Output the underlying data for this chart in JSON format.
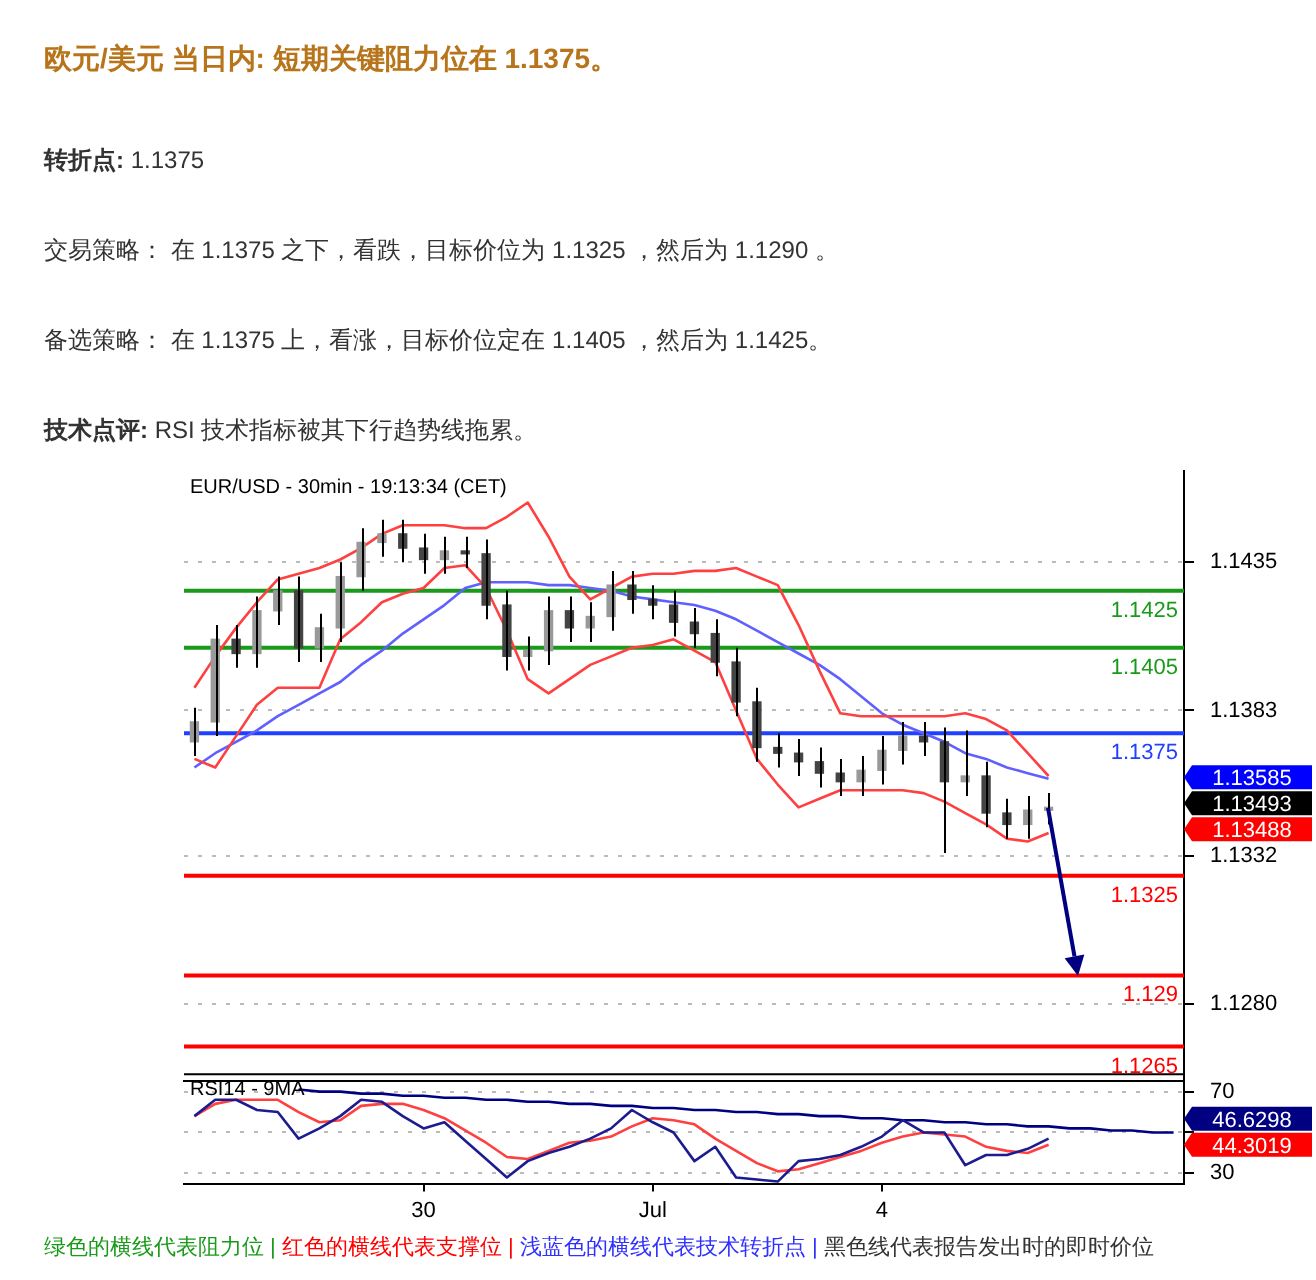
{
  "chart_data": [
    {
      "type": "candlestick",
      "title": "欧元/美元 当日内: 短期关键阻力位在 1.1375。",
      "subtitle": "EUR/USD - 30min - 19:13:34 (CET)",
      "annotations": [
        "转折点: 1.1375",
        "交易策略： 在 1.1375 之下，看跌，目标价位为 1.1325 ，然后为 1.1290 。",
        "备选策略： 在 1.1375 上，看涨，目标价位定在 1.1405 ，然后为 1.1425。",
        "技术点评: RSI 技术指标被其下行趋势线拖累。",
        "1.13585",
        "1.13493",
        "1.13488"
      ],
      "marker": "none",
      "categories": [
        null,
        null,
        null,
        null,
        null,
        null,
        null,
        null,
        null,
        null,
        null,
        null,
        null,
        null,
        null,
        null,
        null,
        null,
        null,
        null,
        null,
        null,
        null,
        null,
        null,
        null,
        null,
        null,
        null,
        null,
        null,
        null,
        null,
        null,
        null,
        null,
        null,
        null,
        null,
        null,
        null,
        null,
        null,
        null,
        null,
        null,
        null,
        null
      ],
      "ohlc": [
        [
          1.1372,
          1.1384,
          1.1367,
          1.1379
        ],
        [
          1.1379,
          1.1413,
          1.1374,
          1.1408
        ],
        [
          1.1408,
          1.1413,
          1.1398,
          1.1403
        ],
        [
          1.1403,
          1.1423,
          1.1398,
          1.1418
        ],
        [
          1.1418,
          1.143,
          1.1413,
          1.1425
        ],
        [
          1.1425,
          1.143,
          1.14,
          1.1405
        ],
        [
          1.1405,
          1.1417,
          1.14,
          1.1412
        ],
        [
          1.1412,
          1.1435,
          1.1407,
          1.143
        ],
        [
          1.143,
          1.1447,
          1.1425,
          1.1442
        ],
        [
          1.1442,
          1.145,
          1.1437,
          1.1445
        ],
        [
          1.1445,
          1.145,
          1.1435,
          1.144
        ],
        [
          1.144,
          1.1445,
          1.1431,
          1.1436
        ],
        [
          1.1436,
          1.1444,
          1.1431,
          1.1439
        ],
        [
          1.1439,
          1.1444,
          1.1433,
          1.1438
        ],
        [
          1.1438,
          1.1443,
          1.1415,
          1.142
        ],
        [
          1.142,
          1.1425,
          1.1397,
          1.1402
        ],
        [
          1.1402,
          1.1409,
          1.1397,
          1.1404
        ],
        [
          1.1404,
          1.1423,
          1.1399,
          1.1418
        ],
        [
          1.1418,
          1.1423,
          1.1407,
          1.1412
        ],
        [
          1.1412,
          1.1421,
          1.1407,
          1.1416
        ],
        [
          1.1416,
          1.1432,
          1.1411,
          1.1427
        ],
        [
          1.1427,
          1.1432,
          1.1417,
          1.1422
        ],
        [
          1.1422,
          1.1427,
          1.1415,
          1.142
        ],
        [
          1.142,
          1.1425,
          1.1409,
          1.1414
        ],
        [
          1.1414,
          1.1419,
          1.1405,
          1.141
        ],
        [
          1.141,
          1.1415,
          1.1395,
          1.14
        ],
        [
          1.14,
          1.1405,
          1.1381,
          1.1386
        ],
        [
          1.1386,
          1.1391,
          1.1365,
          1.137
        ],
        [
          1.137,
          1.1375,
          1.1363,
          1.1368
        ],
        [
          1.1368,
          1.1373,
          1.136,
          1.1365
        ],
        [
          1.1365,
          1.137,
          1.1356,
          1.1361
        ],
        [
          1.1361,
          1.1366,
          1.1353,
          1.1358
        ],
        [
          1.1358,
          1.1367,
          1.1353,
          1.1362
        ],
        [
          1.1362,
          1.1374,
          1.1357,
          1.1369
        ],
        [
          1.1369,
          1.1379,
          1.1364,
          1.1374
        ],
        [
          1.1374,
          1.1379,
          1.1367,
          1.1372
        ],
        [
          1.1372,
          1.1377,
          1.1333,
          1.1358
        ],
        [
          1.1358,
          1.1376,
          1.1353,
          1.136
        ],
        [
          1.136,
          1.1365,
          1.1342,
          1.1347
        ],
        [
          1.1347,
          1.1352,
          1.1338,
          1.1343
        ],
        [
          1.1343,
          1.1353,
          1.1338,
          1.1348
        ],
        [
          1.1348,
          1.1354,
          1.1343,
          1.1349
        ],
        null,
        null,
        null,
        null,
        null,
        null
      ],
      "colors": [
        "#999999",
        "#999999",
        "#444444",
        "#999999",
        "#999999",
        "#444444",
        "#999999",
        "#999999",
        "#999999",
        "#999999",
        "#444444",
        "#444444",
        "#999999",
        "#444444",
        "#444444",
        "#444444",
        "#999999",
        "#999999",
        "#444444",
        "#999999",
        "#999999",
        "#444444",
        "#444444",
        "#444444",
        "#444444",
        "#444444",
        "#444444",
        "#444444",
        "#444444",
        "#444444",
        "#444444",
        "#444444",
        "#999999",
        "#999999",
        "#999999",
        "#444444",
        "#444444",
        "#999999",
        "#444444",
        "#444444",
        "#999999",
        "#999999",
        null,
        null,
        null,
        null,
        null,
        null
      ],
      "series": [
        {
          "type": "line",
          "color": "#ff4040",
          "values": [
            1.1391,
            1.1402,
            1.1412,
            1.1421,
            1.1429,
            1.1431,
            1.1433,
            1.1436,
            1.144,
            1.1445,
            1.1448,
            1.1448,
            1.1448,
            1.1447,
            1.1447,
            1.1451,
            1.1456,
            1.1444,
            1.143,
            1.1422,
            1.1426,
            1.143,
            1.1431,
            1.1431,
            1.1432,
            1.1432,
            1.1433,
            1.143,
            1.1427,
            1.1413,
            1.1397,
            1.1382,
            1.1381,
            1.1381,
            1.1381,
            1.1381,
            1.1381,
            1.1382,
            1.138,
            1.1376,
            1.1368,
            1.136,
            null,
            null,
            null,
            null,
            null,
            null
          ]
        },
        {
          "type": "line",
          "color": "#ff4040",
          "values": [
            1.1366,
            1.1363,
            1.1374,
            1.1385,
            1.1391,
            1.1391,
            1.1391,
            1.1408,
            1.1414,
            1.1421,
            1.1424,
            1.1426,
            1.1433,
            1.1434,
            1.1426,
            1.1411,
            1.1394,
            1.1389,
            1.1394,
            1.1399,
            1.1402,
            1.1405,
            1.1406,
            1.1408,
            1.1404,
            1.14,
            1.1383,
            1.1366,
            1.1357,
            1.1349,
            1.1352,
            1.1355,
            1.1355,
            1.1355,
            1.1355,
            1.1354,
            1.1351,
            1.1347,
            1.1343,
            1.1338,
            1.1337,
            1.134,
            null,
            null,
            null,
            null,
            null,
            null
          ]
        },
        {
          "type": "line",
          "color": "#6060ff",
          "values": [
            1.1363,
            1.1368,
            1.1372,
            1.1376,
            1.1381,
            1.1385,
            1.1389,
            1.1393,
            1.1399,
            1.1404,
            1.141,
            1.1415,
            1.142,
            1.1426,
            1.1428,
            1.1428,
            1.1428,
            1.1427,
            1.1427,
            1.1426,
            1.1425,
            1.1423,
            1.1422,
            1.1421,
            1.142,
            1.1418,
            1.1415,
            1.1411,
            1.1407,
            1.1403,
            1.1399,
            1.1394,
            1.1388,
            1.1382,
            1.1378,
            1.1375,
            1.1372,
            1.1368,
            1.1366,
            1.1363,
            1.1361,
            1.1359,
            null,
            null,
            null,
            null,
            null,
            null
          ]
        }
      ],
      "ref_lines": [
        {
          "axis": "y",
          "value": 1.1425,
          "label": "1.1425",
          "color": "#1a9a1a"
        },
        {
          "axis": "y",
          "value": 1.1405,
          "label": "1.1405",
          "color": "#1a9a1a"
        },
        {
          "axis": "y",
          "value": 1.1375,
          "label": "1.1375",
          "color": "#2040ff"
        },
        {
          "axis": "y",
          "value": 1.1325,
          "label": "1.1325",
          "color": "#ff0000"
        },
        {
          "axis": "y",
          "value": 1.129,
          "label": "1.129",
          "color": "#ff0000"
        },
        {
          "axis": "y",
          "value": 1.1265,
          "label": "1.1265",
          "color": "#ff0000"
        }
      ],
      "ylim": [
        1.1253,
        1.1467
      ],
      "yticks": [
        1.1435,
        1.1383,
        1.1332,
        {
          "value": 1.128,
          "label": "1.1280"
        }
      ],
      "grid": "y",
      "tick_labels": "y"
    },
    {
      "type": "line",
      "title": "RSI14 - 9MA",
      "marker": "none",
      "annotations": [
        "绿色的横线代表阻力位 |",
        "红色的横线代表支撑位 |",
        "浅蓝色的横线代表技术转折点 |",
        "黑色线代表报告发出时的即时价位",
        "46.6298",
        "44.3019"
      ],
      "categories": [
        null,
        null,
        null,
        null,
        null,
        null,
        null,
        null,
        null,
        null,
        null,
        "30",
        null,
        null,
        null,
        null,
        null,
        null,
        null,
        null,
        null,
        null,
        "Jul",
        null,
        null,
        null,
        null,
        null,
        null,
        null,
        null,
        null,
        null,
        "4",
        null,
        null,
        null,
        null,
        null,
        null,
        null,
        null,
        null,
        null,
        null,
        null,
        null,
        null
      ],
      "series": [
        {
          "color": "#1c1c90",
          "values": [
            58,
            66,
            66,
            61,
            60,
            47,
            52,
            58,
            66,
            65,
            58,
            52,
            55,
            46,
            37,
            28,
            36,
            40,
            43,
            47,
            52,
            61,
            55,
            50,
            36,
            43,
            28,
            27,
            26,
            36,
            37,
            39,
            43,
            48,
            56,
            50,
            50,
            34,
            39,
            39,
            42,
            47,
            null,
            null,
            null,
            null,
            null,
            null
          ]
        },
        {
          "color": "#ff4040",
          "values": [
            58,
            64,
            66,
            66,
            66,
            60,
            55,
            56,
            63,
            64,
            64,
            61,
            57,
            51,
            45,
            38,
            37,
            41,
            45,
            46,
            48,
            53,
            57,
            56,
            54,
            47,
            41,
            35,
            31,
            32,
            35,
            38,
            41,
            45,
            48,
            50,
            49,
            48,
            43,
            41,
            40,
            44,
            null,
            null,
            null,
            null,
            null,
            null
          ]
        },
        {
          "color": "#000080",
          "values": [
            null,
            null,
            null,
            null,
            null,
            71,
            70,
            70,
            69,
            69,
            68,
            68,
            67,
            67,
            66,
            66,
            65,
            65,
            64,
            64,
            63,
            63,
            62,
            62,
            61,
            61,
            60,
            60,
            59,
            59,
            58,
            58,
            57,
            57,
            56,
            56,
            55,
            55,
            54,
            54,
            53,
            53,
            52,
            52,
            51,
            51,
            50,
            50
          ]
        }
      ],
      "ylim": [
        25,
        79
      ],
      "yticks": [
        70,
        {
          "value": 50,
          "label": null
        },
        30
      ],
      "grid": "y"
    }
  ]
}
